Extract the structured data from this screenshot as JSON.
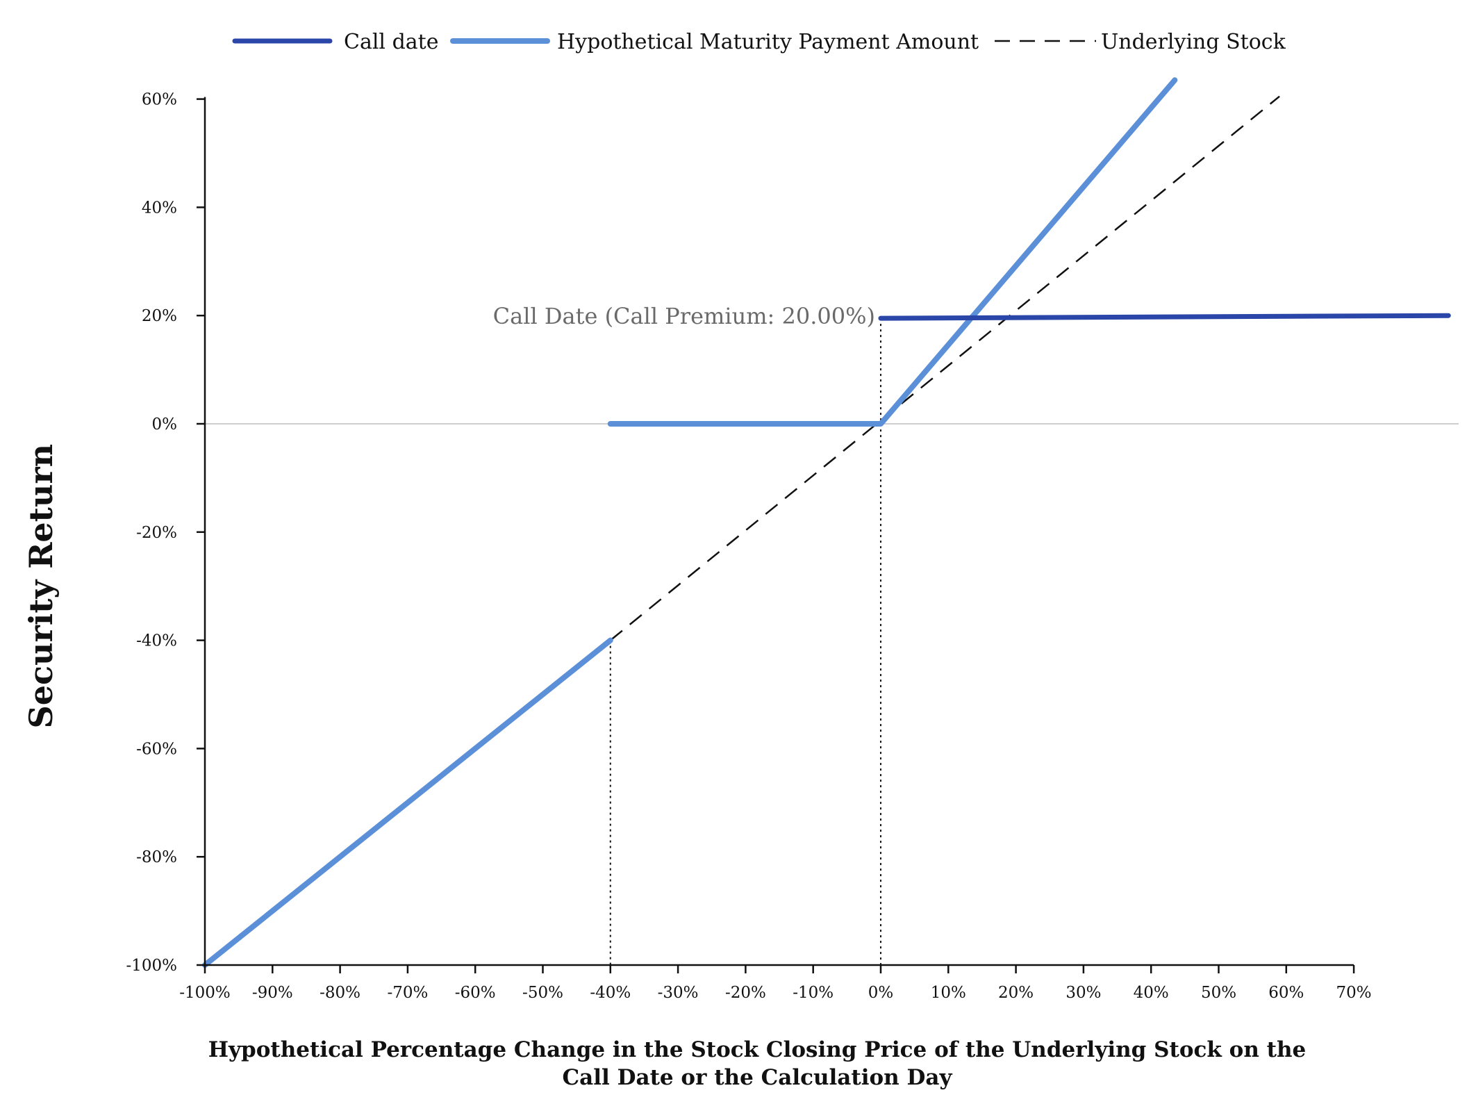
{
  "chart_data": {
    "type": "line",
    "xlabel_line1": "Hypothetical Percentage Change in the Stock Closing Price of the Underlying Stock on the",
    "xlabel_line2": "Call Date or the Calculation Day",
    "ylabel": "Security Return",
    "xlim": [
      -100,
      70
    ],
    "ylim": [
      -100,
      60
    ],
    "x_ticks": [
      -100,
      -90,
      -80,
      -70,
      -60,
      -50,
      -40,
      -30,
      -20,
      -10,
      0,
      10,
      20,
      30,
      40,
      50,
      60,
      70
    ],
    "x_tick_labels": [
      "-100%",
      "-90%",
      "-80%",
      "-70%",
      "-60%",
      "-50%",
      "-40%",
      "-30%",
      "-20%",
      "-10%",
      "0%",
      "10%",
      "20%",
      "30%",
      "40%",
      "50%",
      "60%",
      "70%"
    ],
    "y_ticks": [
      -100,
      -80,
      -60,
      -40,
      -20,
      0,
      20,
      40,
      60
    ],
    "y_tick_labels": [
      "-100%",
      "-80%",
      "-60%",
      "-40%",
      "-20%",
      "0%",
      "20%",
      "40%",
      "60%"
    ],
    "legend_position": "top",
    "series": [
      {
        "name": "Call date",
        "color": "#2a46a8",
        "style": "solid",
        "points": [
          [
            0,
            19.5
          ],
          [
            84,
            20
          ]
        ]
      },
      {
        "name": "Hypothetical Maturity Payment Amount",
        "color": "#5b8fd8",
        "style": "solid",
        "segments": [
          [
            [
              -100,
              -100
            ],
            [
              -40,
              -40
            ]
          ],
          [
            [
              -40,
              0
            ],
            [
              0,
              0
            ],
            [
              43.5,
              63.5
            ]
          ]
        ]
      },
      {
        "name": "Underlying Stock",
        "color": "#111111",
        "style": "dashed",
        "points": [
          [
            -40,
            -40
          ],
          [
            59,
            60.5
          ]
        ]
      }
    ],
    "reference_lines": [
      {
        "x": -40,
        "y_from": -100,
        "y_to": -40,
        "style": "dotted"
      },
      {
        "x": 0,
        "y_from": -100,
        "y_to": 19.5,
        "style": "dotted"
      }
    ],
    "zero_line": {
      "y": 0,
      "color": "#bdbdbd"
    },
    "annotation": {
      "text": "Call Date (Call Premium: 20.00%)",
      "x": 0,
      "y": 20
    }
  }
}
